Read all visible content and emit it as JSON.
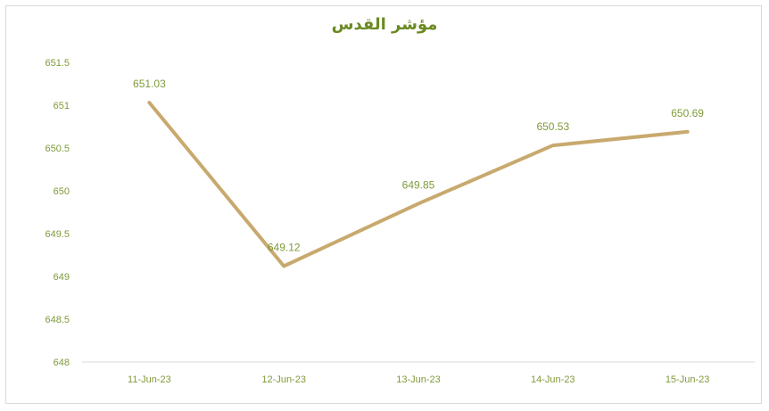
{
  "chart_data": {
    "type": "line",
    "title": "مؤشر القدس",
    "categories": [
      "11-Jun-23",
      "12-Jun-23",
      "13-Jun-23",
      "14-Jun-23",
      "15-Jun-23"
    ],
    "series": [
      {
        "values": [
          651.03,
          649.12,
          649.85,
          650.53,
          650.69
        ],
        "labels": [
          "651.03",
          "649.12",
          "649.85",
          "650.53",
          "650.69"
        ]
      }
    ],
    "y_ticks": [
      "648",
      "648.5",
      "649",
      "649.5",
      "650",
      "650.5",
      "651",
      "651.5"
    ],
    "ylim": [
      648,
      651.5
    ],
    "grid": false,
    "legend": "none",
    "colors": {
      "line": "#c8a96e",
      "text": "#7f9a3a",
      "title": "#6b8a23",
      "axis": "#d9d9d9"
    }
  }
}
